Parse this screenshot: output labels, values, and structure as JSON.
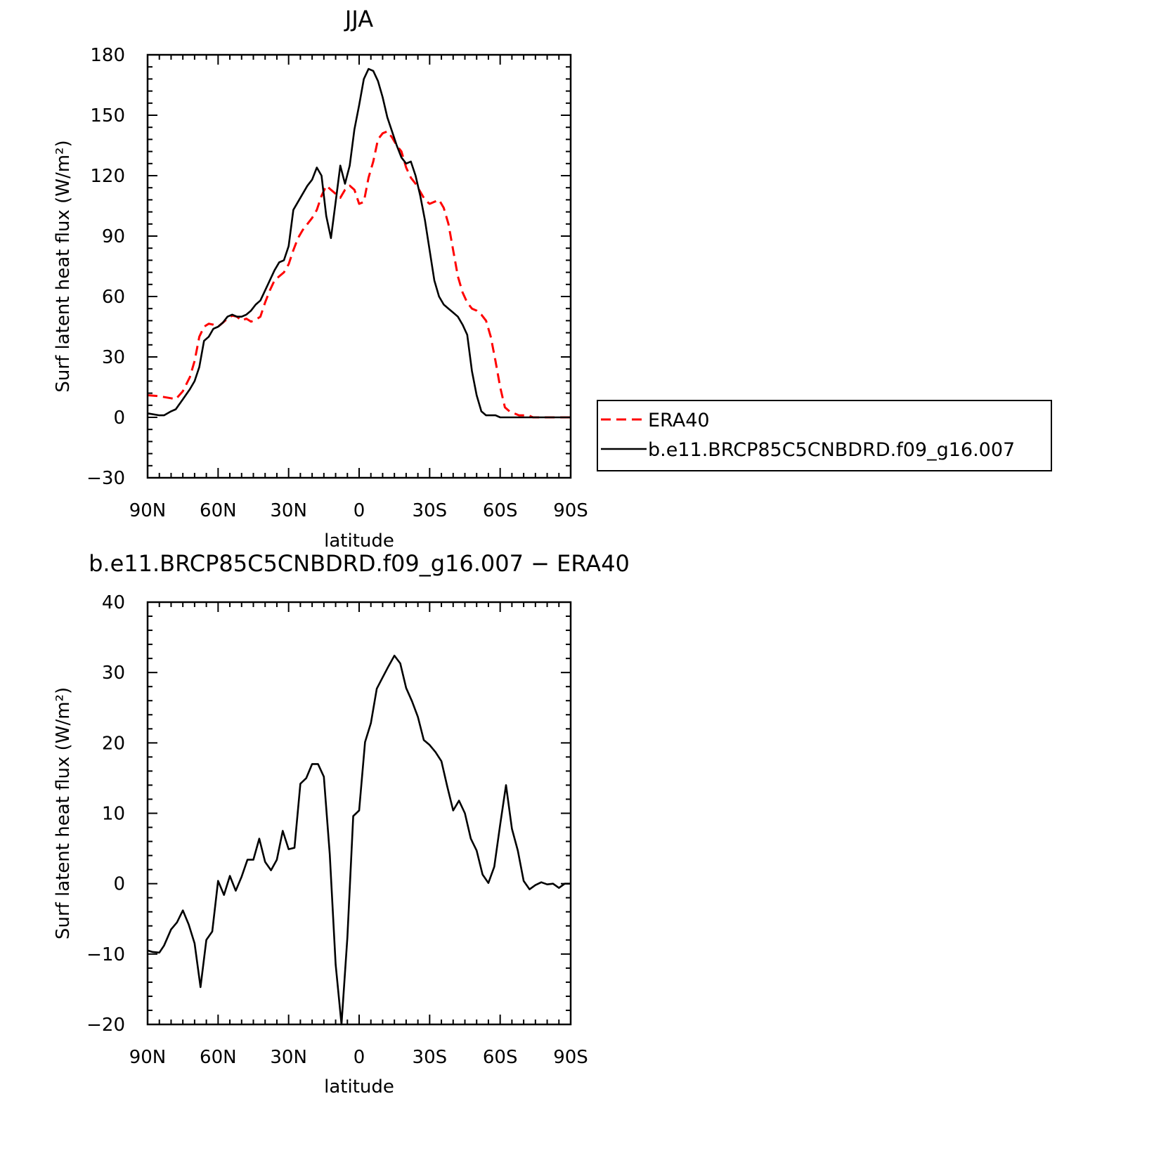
{
  "chart_data": [
    {
      "type": "line",
      "title": "JJA",
      "xlabel": "latitude",
      "ylabel": "Surf latent heat flux (W/m²)",
      "xlim": [
        90,
        -90
      ],
      "ylim": [
        -30,
        180
      ],
      "x_ticks": [
        90,
        60,
        30,
        0,
        -30,
        -60,
        -90
      ],
      "x_tick_labels": [
        "90N",
        "60N",
        "30N",
        "0",
        "30S",
        "60S",
        "90S"
      ],
      "y_ticks": [
        -30,
        0,
        30,
        60,
        90,
        120,
        150,
        180
      ],
      "y_tick_labels": [
        "−30",
        "0",
        "30",
        "60",
        "90",
        "120",
        "150",
        "180"
      ],
      "x_minor_step": 5,
      "y_minor_step": 6,
      "grid": false,
      "legend_position": "right",
      "series": [
        {
          "name": "ERA40",
          "color": "#ff0000",
          "style": "dashed",
          "points": [
            [
              90,
              11
            ],
            [
              85,
              10.5
            ],
            [
              80,
              9.5
            ],
            [
              78,
              9
            ],
            [
              75,
              13
            ],
            [
              72,
              20
            ],
            [
              70,
              28
            ],
            [
              68,
              40
            ],
            [
              66,
              45
            ],
            [
              64,
              46.5
            ],
            [
              62,
              46
            ],
            [
              60,
              45
            ],
            [
              58,
              47
            ],
            [
              56,
              49
            ],
            [
              54,
              50.5
            ],
            [
              52,
              50
            ],
            [
              50,
              48
            ],
            [
              48,
              49
            ],
            [
              46,
              47.5
            ],
            [
              44,
              48.5
            ],
            [
              42,
              50
            ],
            [
              40,
              57
            ],
            [
              38,
              63
            ],
            [
              36,
              68
            ],
            [
              34,
              70
            ],
            [
              32,
              72
            ],
            [
              30,
              76
            ],
            [
              28,
              83
            ],
            [
              26,
              89
            ],
            [
              24,
              93
            ],
            [
              22,
              96
            ],
            [
              20,
              99
            ],
            [
              18,
              103
            ],
            [
              16,
              110
            ],
            [
              14,
              115
            ],
            [
              12,
              113
            ],
            [
              10,
              111
            ],
            [
              8,
              109
            ],
            [
              6,
              113
            ],
            [
              4,
              115
            ],
            [
              2,
              113
            ],
            [
              0,
              106
            ],
            [
              -2,
              107
            ],
            [
              -4,
              119
            ],
            [
              -6,
              127
            ],
            [
              -8,
              138
            ],
            [
              -10,
              141
            ],
            [
              -12,
              142
            ],
            [
              -14,
              139
            ],
            [
              -16,
              135
            ],
            [
              -18,
              132
            ],
            [
              -20,
              124
            ],
            [
              -22,
              119
            ],
            [
              -24,
              116
            ],
            [
              -26,
              112
            ],
            [
              -28,
              108
            ],
            [
              -30,
              106
            ],
            [
              -32,
              107
            ],
            [
              -34,
              108
            ],
            [
              -36,
              104
            ],
            [
              -38,
              96
            ],
            [
              -40,
              83
            ],
            [
              -42,
              70
            ],
            [
              -44,
              62
            ],
            [
              -46,
              57
            ],
            [
              -48,
              54
            ],
            [
              -50,
              53
            ],
            [
              -52,
              51
            ],
            [
              -54,
              48
            ],
            [
              -56,
              40
            ],
            [
              -58,
              28
            ],
            [
              -60,
              15
            ],
            [
              -62,
              5
            ],
            [
              -64,
              3
            ],
            [
              -66,
              2
            ],
            [
              -68,
              1
            ],
            [
              -72,
              1
            ],
            [
              -74,
              0
            ],
            [
              -78,
              0
            ],
            [
              -82,
              0
            ],
            [
              -90,
              0
            ]
          ]
        },
        {
          "name": "b.e11.BRCP85C5CNBDRD.f09_g16.007",
          "color": "#000000",
          "style": "solid",
          "points": [
            [
              90,
              2
            ],
            [
              85,
              1
            ],
            [
              83,
              1
            ],
            [
              80,
              3
            ],
            [
              78,
              4
            ],
            [
              75,
              9
            ],
            [
              72,
              14
            ],
            [
              70,
              18
            ],
            [
              68,
              25
            ],
            [
              66,
              38
            ],
            [
              64,
              40
            ],
            [
              62,
              44
            ],
            [
              60,
              45
            ],
            [
              58,
              47
            ],
            [
              56,
              50
            ],
            [
              54,
              51
            ],
            [
              52,
              50
            ],
            [
              50,
              50
            ],
            [
              48,
              51
            ],
            [
              46,
              53
            ],
            [
              44,
              56
            ],
            [
              42,
              58
            ],
            [
              40,
              63
            ],
            [
              38,
              68
            ],
            [
              36,
              73
            ],
            [
              34,
              77
            ],
            [
              32,
              78
            ],
            [
              30,
              85
            ],
            [
              28,
              103
            ],
            [
              26,
              107
            ],
            [
              24,
              111
            ],
            [
              22,
              115
            ],
            [
              20,
              118
            ],
            [
              18,
              124
            ],
            [
              16,
              120
            ],
            [
              14,
              100
            ],
            [
              12,
              89
            ],
            [
              10,
              107
            ],
            [
              8,
              125
            ],
            [
              6,
              116
            ],
            [
              4,
              125
            ],
            [
              2,
              143
            ],
            [
              0,
              155
            ],
            [
              -2,
              168
            ],
            [
              -4,
              173
            ],
            [
              -6,
              172
            ],
            [
              -8,
              167
            ],
            [
              -10,
              159
            ],
            [
              -12,
              149
            ],
            [
              -14,
              142
            ],
            [
              -16,
              135
            ],
            [
              -18,
              129
            ],
            [
              -20,
              126
            ],
            [
              -22,
              127
            ],
            [
              -24,
              120
            ],
            [
              -26,
              110
            ],
            [
              -28,
              98
            ],
            [
              -30,
              83
            ],
            [
              -32,
              68
            ],
            [
              -34,
              60
            ],
            [
              -36,
              56
            ],
            [
              -38,
              54
            ],
            [
              -40,
              52
            ],
            [
              -42,
              50
            ],
            [
              -44,
              46
            ],
            [
              -46,
              41
            ],
            [
              -48,
              23
            ],
            [
              -50,
              11
            ],
            [
              -52,
              3
            ],
            [
              -54,
              1
            ],
            [
              -56,
              1
            ],
            [
              -58,
              1
            ],
            [
              -60,
              0
            ],
            [
              -70,
              0
            ],
            [
              -90,
              0
            ]
          ]
        }
      ],
      "legend": [
        {
          "label": "ERA40",
          "color": "#ff0000",
          "style": "dashed"
        },
        {
          "label": "b.e11.BRCP85C5CNBDRD.f09_g16.007",
          "color": "#000000",
          "style": "solid"
        }
      ]
    },
    {
      "type": "line",
      "title": "b.e11.BRCP85C5CNBDRD.f09_g16.007 − ERA40",
      "xlabel": "latitude",
      "ylabel": "Surf latent heat flux (W/m²)",
      "xlim": [
        90,
        -90
      ],
      "ylim": [
        -20,
        40
      ],
      "x_ticks": [
        90,
        60,
        30,
        0,
        -30,
        -60,
        -90
      ],
      "x_tick_labels": [
        "90N",
        "60N",
        "30N",
        "0",
        "30S",
        "60S",
        "90S"
      ],
      "y_ticks": [
        -20,
        -10,
        0,
        10,
        20,
        30,
        40
      ],
      "y_tick_labels": [
        "−20",
        "−10",
        "0",
        "10",
        "20",
        "30",
        "40"
      ],
      "x_minor_step": 5,
      "y_minor_step": 2,
      "grid": false,
      "series": [
        {
          "color": "#000000",
          "style": "solid",
          "points": [
            [
              90,
              -9.5
            ],
            [
              88,
              -9.7
            ],
            [
              85,
              -9.8
            ],
            [
              83,
              -8.8
            ],
            [
              80,
              -6.5
            ],
            [
              77.5,
              -5.5
            ],
            [
              75,
              -3.8
            ],
            [
              72.5,
              -5.8
            ],
            [
              70,
              -8.5
            ],
            [
              67.5,
              -14.7
            ],
            [
              65,
              -8
            ],
            [
              62.5,
              -6.8
            ],
            [
              60,
              0.4
            ],
            [
              57.5,
              -1.6
            ],
            [
              55,
              1.1
            ],
            [
              52.5,
              -1
            ],
            [
              50,
              1
            ],
            [
              47.5,
              3.4
            ],
            [
              45,
              3.4
            ],
            [
              42.5,
              6.4
            ],
            [
              40,
              3.1
            ],
            [
              37.5,
              1.9
            ],
            [
              35,
              3.4
            ],
            [
              32.5,
              7.5
            ],
            [
              30,
              4.9
            ],
            [
              27.5,
              5.1
            ],
            [
              25,
              14.2
            ],
            [
              22.5,
              15
            ],
            [
              20,
              17
            ],
            [
              17.5,
              17
            ],
            [
              15,
              15.2
            ],
            [
              12.5,
              4.2
            ],
            [
              10,
              -11.5
            ],
            [
              7.5,
              -20
            ],
            [
              5,
              -7.6
            ],
            [
              2.5,
              9.6
            ],
            [
              0,
              10.4
            ],
            [
              -2.5,
              20.1
            ],
            [
              -5,
              22.8
            ],
            [
              -7.5,
              27.7
            ],
            [
              -10,
              29.3
            ],
            [
              -12.5,
              30.9
            ],
            [
              -15,
              32.4
            ],
            [
              -17.5,
              31.3
            ],
            [
              -20,
              27.8
            ],
            [
              -22.5,
              25.9
            ],
            [
              -25,
              23.7
            ],
            [
              -27.5,
              20.4
            ],
            [
              -30,
              19.7
            ],
            [
              -32.5,
              18.7
            ],
            [
              -35,
              17.4
            ],
            [
              -37.5,
              13.8
            ],
            [
              -40,
              10.4
            ],
            [
              -42.5,
              11.8
            ],
            [
              -45,
              10
            ],
            [
              -47.5,
              6.4
            ],
            [
              -50,
              4.7
            ],
            [
              -52.5,
              1.3
            ],
            [
              -55,
              0.1
            ],
            [
              -57.5,
              2.4
            ],
            [
              -60,
              8.4
            ],
            [
              -62.5,
              14
            ],
            [
              -65,
              7.8
            ],
            [
              -67.5,
              4.7
            ],
            [
              -70,
              0.4
            ],
            [
              -72.5,
              -0.8
            ],
            [
              -75,
              -0.2
            ],
            [
              -77.5,
              0.2
            ],
            [
              -80,
              -0.1
            ],
            [
              -82.5,
              0
            ],
            [
              -85,
              -0.6
            ],
            [
              -87.5,
              0
            ],
            [
              -90,
              0
            ]
          ]
        }
      ]
    }
  ]
}
